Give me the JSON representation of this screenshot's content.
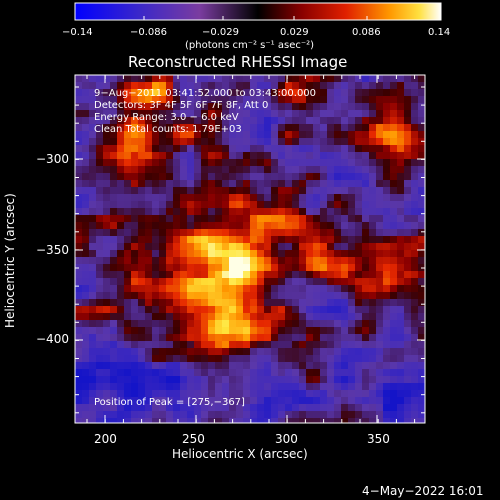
{
  "colorbar": {
    "tick_labels": [
      "−0.14",
      "−0.086",
      "−0.029",
      "0.029",
      "0.086",
      "0.14"
    ],
    "unit_label": "(photons cm⁻² s⁻¹ asec⁻²)"
  },
  "plot": {
    "title": "Reconstructed RHESSI Image",
    "xlabel": "Heliocentric X (arcsec)",
    "ylabel": "Heliocentric Y (arcsec)",
    "x_ticks": [
      "200",
      "250",
      "300",
      "350"
    ],
    "y_ticks": [
      "−300",
      "−350",
      "−400"
    ],
    "info_lines": [
      "9−Aug−2011 03:41:52.000 to 03:43:00.000",
      "Detectors: 3F 4F 5F 6F 7F 8F, Att 0",
      "Energy Range: 3.0 − 6.0 keV",
      "Clean    Total counts: 1.79E+03"
    ],
    "peak_label": "Position of Peak = [275,−367]"
  },
  "footer": {
    "date": "4−May−2022 16:01"
  },
  "chart_data": {
    "type": "heatmap",
    "title": "Reconstructed RHESSI Image",
    "xlabel": "Heliocentric X (arcsec)",
    "ylabel": "Heliocentric Y (arcsec)",
    "xlim": [
      184,
      373
    ],
    "ylim": [
      -446,
      -259
    ],
    "colorbar_range": [
      -0.14,
      0.14
    ],
    "colormap": "blue-purple-red-yellow-white",
    "peak": [
      275,
      -367
    ],
    "total_counts": "1.79E+03"
  }
}
